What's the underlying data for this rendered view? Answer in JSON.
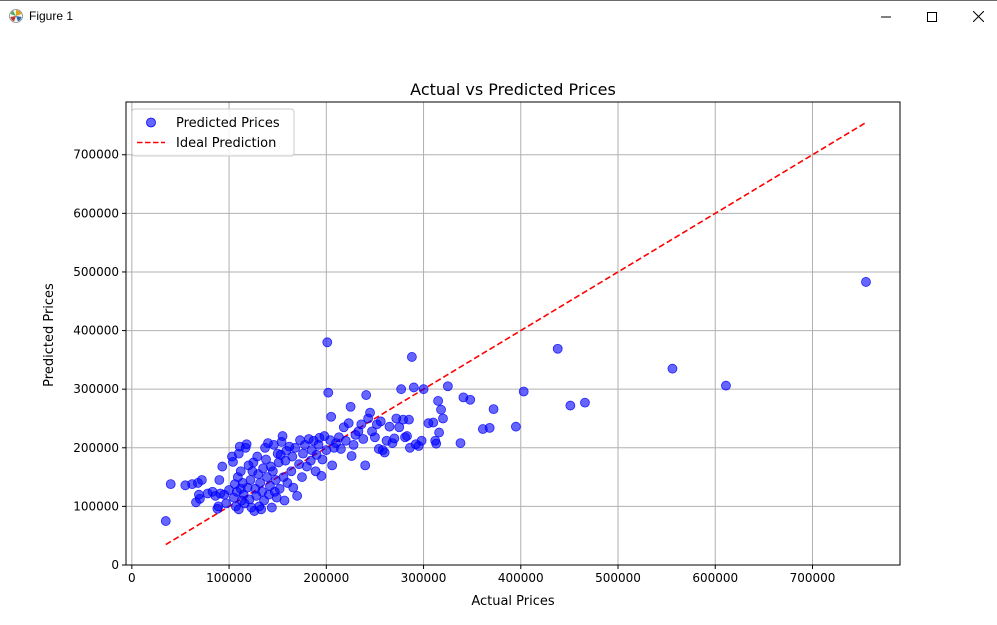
{
  "window": {
    "title": "Figure 1",
    "icon": "matplotlib-icon",
    "buttons": {
      "minimize": "minimize-icon",
      "maximize": "maximize-icon",
      "close": "close-icon"
    }
  },
  "chart_data": {
    "type": "scatter",
    "title": "Actual vs Predicted Prices",
    "xlabel": "Actual Prices",
    "ylabel": "Predicted Prices",
    "xlim": [
      -6000,
      790000
    ],
    "ylim": [
      0,
      790000
    ],
    "x_ticks": [
      0,
      100000,
      200000,
      300000,
      400000,
      500000,
      600000,
      700000
    ],
    "y_ticks": [
      0,
      100000,
      200000,
      300000,
      400000,
      500000,
      600000,
      700000
    ],
    "grid": true,
    "legend": {
      "placement": "top-left",
      "entries": [
        {
          "label": "Predicted Prices",
          "marker": "circle"
        },
        {
          "label": "Ideal Prediction",
          "marker": "dashed-line"
        }
      ]
    },
    "colors": {
      "points": "#0000ff",
      "ideal_line": "#ff0000",
      "grid": "#b0b0b0"
    },
    "series": [
      {
        "name": "Predicted Prices",
        "kind": "scatter",
        "points": [
          [
            34900,
            75000
          ],
          [
            40000,
            138000
          ],
          [
            55000,
            136000
          ],
          [
            62000,
            138000
          ],
          [
            66000,
            107000
          ],
          [
            68000,
            140000
          ],
          [
            69000,
            120000
          ],
          [
            70000,
            113000
          ],
          [
            72000,
            145000
          ],
          [
            78000,
            122000
          ],
          [
            83000,
            125000
          ],
          [
            86000,
            118000
          ],
          [
            88000,
            96000
          ],
          [
            89000,
            100000
          ],
          [
            90000,
            145000
          ],
          [
            91000,
            122000
          ],
          [
            93000,
            168000
          ],
          [
            95000,
            120000
          ],
          [
            97000,
            105000
          ],
          [
            100000,
            128000
          ],
          [
            103000,
            185000
          ],
          [
            104000,
            176000
          ],
          [
            105000,
            115000
          ],
          [
            106000,
            138000
          ],
          [
            107000,
            100000
          ],
          [
            108000,
            125000
          ],
          [
            109000,
            150000
          ],
          [
            110000,
            95000
          ],
          [
            110000,
            190000
          ],
          [
            111000,
            202000
          ],
          [
            112000,
            160000
          ],
          [
            112000,
            130000
          ],
          [
            113000,
            110000
          ],
          [
            114000,
            140000
          ],
          [
            115000,
            120000
          ],
          [
            116000,
            105000
          ],
          [
            117000,
            200000
          ],
          [
            118000,
            206000
          ],
          [
            119000,
            132000
          ],
          [
            120000,
            170000
          ],
          [
            121000,
            112000
          ],
          [
            122000,
            145000
          ],
          [
            123000,
            98000
          ],
          [
            124000,
            160000
          ],
          [
            125000,
            175000
          ],
          [
            126000,
            92000
          ],
          [
            127000,
            130000
          ],
          [
            128000,
            118000
          ],
          [
            129000,
            185000
          ],
          [
            130000,
            155000
          ],
          [
            131000,
            100000
          ],
          [
            132000,
            140000
          ],
          [
            133000,
            95000
          ],
          [
            134000,
            125000
          ],
          [
            135000,
            165000
          ],
          [
            136000,
            110000
          ],
          [
            137000,
            200000
          ],
          [
            138000,
            180000
          ],
          [
            139000,
            150000
          ],
          [
            140000,
            208000
          ],
          [
            141000,
            120000
          ],
          [
            142000,
            135000
          ],
          [
            143000,
            168000
          ],
          [
            144000,
            98000
          ],
          [
            145000,
            160000
          ],
          [
            146000,
            205000
          ],
          [
            147000,
            125000
          ],
          [
            148000,
            145000
          ],
          [
            149000,
            115000
          ],
          [
            150000,
            190000
          ],
          [
            151000,
            175000
          ],
          [
            152000,
            130000
          ],
          [
            153000,
            188000
          ],
          [
            154000,
            210000
          ],
          [
            155000,
            220000
          ],
          [
            156000,
            150000
          ],
          [
            157000,
            110000
          ],
          [
            158000,
            178000
          ],
          [
            159000,
            195000
          ],
          [
            160000,
            140000
          ],
          [
            162000,
            202000
          ],
          [
            164000,
            160000
          ],
          [
            165000,
            185000
          ],
          [
            166000,
            132000
          ],
          [
            168000,
            200000
          ],
          [
            170000,
            118000
          ],
          [
            172000,
            172000
          ],
          [
            173000,
            213000
          ],
          [
            175000,
            150000
          ],
          [
            176000,
            190000
          ],
          [
            178000,
            205000
          ],
          [
            180000,
            168000
          ],
          [
            182000,
            215000
          ],
          [
            184000,
            178000
          ],
          [
            185000,
            196000
          ],
          [
            187000,
            212000
          ],
          [
            189000,
            160000
          ],
          [
            190000,
            188000
          ],
          [
            192000,
            205000
          ],
          [
            193000,
            217000
          ],
          [
            195000,
            152000
          ],
          [
            196000,
            180000
          ],
          [
            198000,
            220000
          ],
          [
            200000,
            196000
          ],
          [
            201000,
            380000
          ],
          [
            202000,
            294000
          ],
          [
            204000,
            213000
          ],
          [
            205000,
            253000
          ],
          [
            206000,
            170000
          ],
          [
            208000,
            200000
          ],
          [
            210000,
            208000
          ],
          [
            213000,
            218000
          ],
          [
            215000,
            198000
          ],
          [
            218000,
            235000
          ],
          [
            220000,
            212000
          ],
          [
            223000,
            242000
          ],
          [
            225000,
            270000
          ],
          [
            226000,
            186000
          ],
          [
            228000,
            205000
          ],
          [
            230000,
            222000
          ],
          [
            233000,
            228000
          ],
          [
            236000,
            240000
          ],
          [
            238000,
            215000
          ],
          [
            240000,
            170000
          ],
          [
            241000,
            290000
          ],
          [
            243000,
            250000
          ],
          [
            245000,
            260000
          ],
          [
            247000,
            228000
          ],
          [
            250000,
            218000
          ],
          [
            252000,
            240000
          ],
          [
            254000,
            198000
          ],
          [
            256000,
            245000
          ],
          [
            258000,
            196000
          ],
          [
            260000,
            192000
          ],
          [
            262000,
            212000
          ],
          [
            265000,
            236000
          ],
          [
            268000,
            208000
          ],
          [
            270000,
            216000
          ],
          [
            272000,
            250000
          ],
          [
            275000,
            235000
          ],
          [
            277000,
            300000
          ],
          [
            279000,
            248000
          ],
          [
            281000,
            218000
          ],
          [
            283000,
            220000
          ],
          [
            285000,
            248000
          ],
          [
            286000,
            200000
          ],
          [
            288000,
            355000
          ],
          [
            290000,
            303000
          ],
          [
            292000,
            206000
          ],
          [
            295000,
            203000
          ],
          [
            298000,
            212000
          ],
          [
            300000,
            300000
          ],
          [
            305000,
            242000
          ],
          [
            310000,
            243000
          ],
          [
            312000,
            212000
          ],
          [
            313000,
            207000
          ],
          [
            315000,
            280000
          ],
          [
            316000,
            226000
          ],
          [
            318000,
            265000
          ],
          [
            320000,
            250000
          ],
          [
            325000,
            305000
          ],
          [
            338000,
            208000
          ],
          [
            341000,
            286000
          ],
          [
            348000,
            282000
          ],
          [
            361000,
            232000
          ],
          [
            368000,
            234000
          ],
          [
            372000,
            266000
          ],
          [
            403000,
            296000
          ],
          [
            395000,
            236000
          ],
          [
            438000,
            369000
          ],
          [
            451000,
            272000
          ],
          [
            466000,
            277000
          ],
          [
            556000,
            335000
          ],
          [
            611000,
            306000
          ],
          [
            755000,
            483000
          ]
        ]
      },
      {
        "name": "Ideal Prediction",
        "kind": "line",
        "style": "dashed",
        "x": [
          34900,
          755000
        ],
        "y": [
          34900,
          755000
        ]
      }
    ]
  }
}
